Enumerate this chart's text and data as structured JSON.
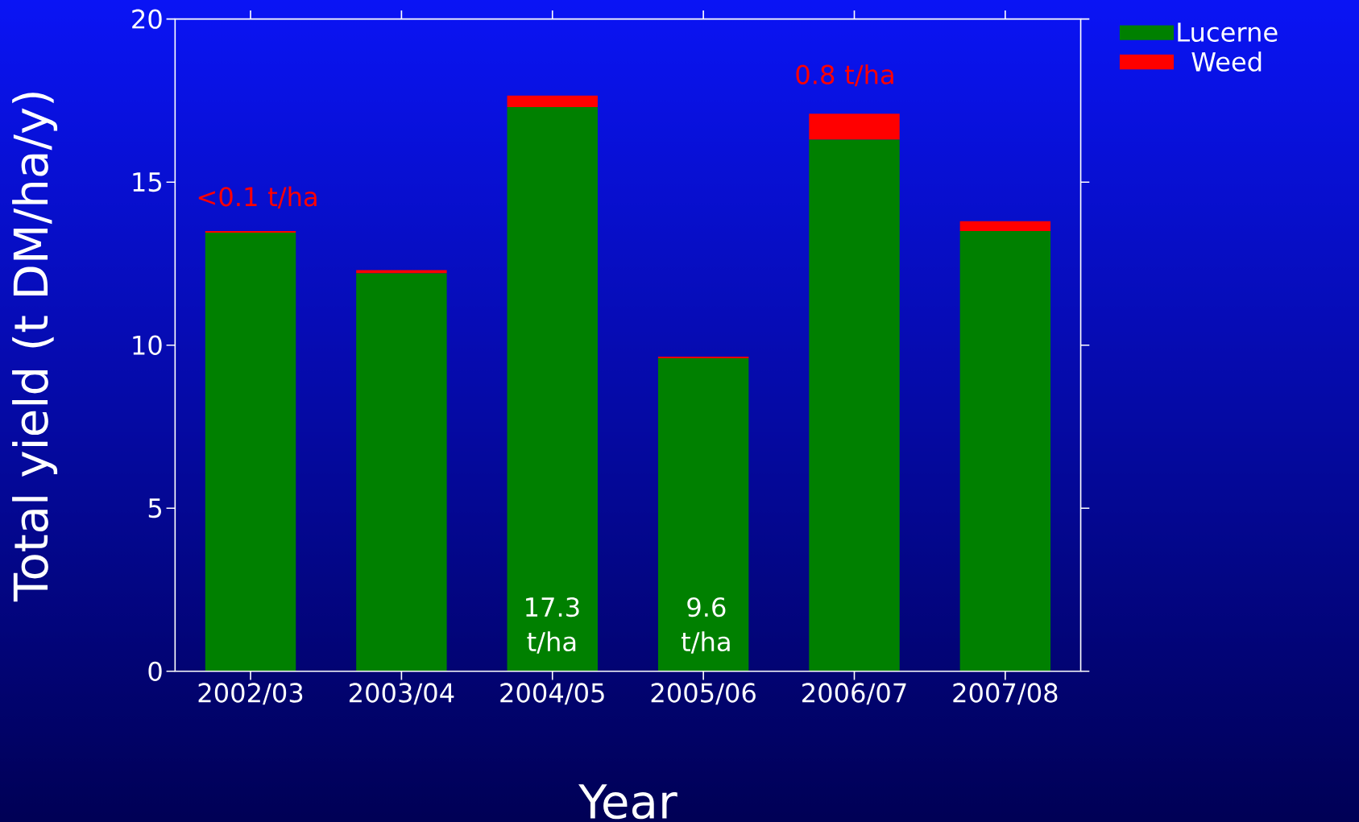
{
  "chart_data": {
    "type": "bar",
    "stacked": true,
    "xlabel": "Year",
    "ylabel": "Total yield (t DM/ha/y)",
    "categories": [
      "2002/03",
      "2003/04",
      "2004/05",
      "2005/06",
      "2006/07",
      "2007/08"
    ],
    "series": [
      {
        "name": "Lucerne",
        "color": "#008000",
        "values": [
          13.45,
          12.2,
          17.3,
          9.6,
          16.3,
          13.5
        ]
      },
      {
        "name": "Weed",
        "color": "#ff0000",
        "values": [
          0.05,
          0.1,
          0.35,
          0.05,
          0.8,
          0.3
        ]
      }
    ],
    "ylim": [
      0,
      20
    ],
    "yticks": [
      0,
      5,
      10,
      15,
      20
    ],
    "legend": "top right",
    "grid": false,
    "annotations": [
      "<0.1 t/ha",
      "17.3 t/ha",
      "9.6 t/ha",
      "0.8 t/ha"
    ]
  }
}
